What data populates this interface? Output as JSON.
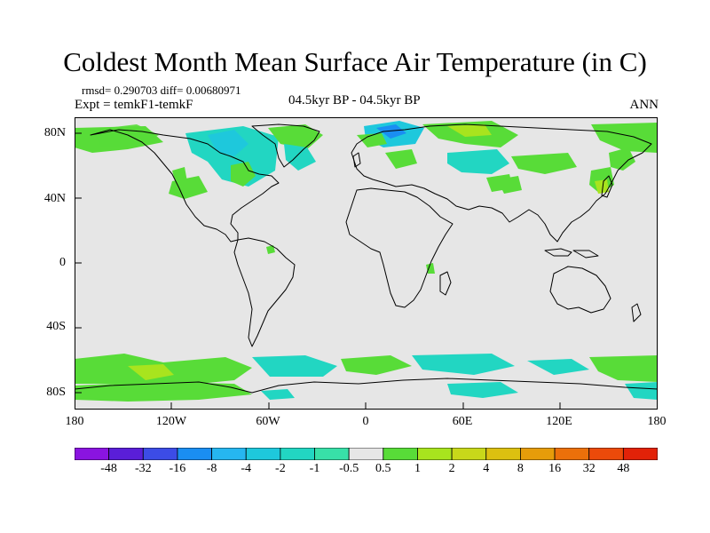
{
  "title": "Coldest Month Mean Surface Air Temperature (in C)",
  "stats_line": "rmsd= 0.290703 diff= 0.00680971",
  "experiment": "Expt = temkF1-temkF",
  "period": "04.5kyr BP - 04.5kyr BP",
  "season": "ANN",
  "lat_labels": [
    "80N",
    "40N",
    "0",
    "40S",
    "80S"
  ],
  "lon_labels": [
    "180",
    "120W",
    "60W",
    "0",
    "60E",
    "120E",
    "180"
  ],
  "colorbar": {
    "colors": [
      "#8a14e0",
      "#5a1ed8",
      "#3c4ce6",
      "#1a8ef2",
      "#26b6f0",
      "#1ec8dc",
      "#22d6c2",
      "#38e0a8",
      "#e6e6e6",
      "#58dc38",
      "#a8e41e",
      "#c8d81a",
      "#dcc010",
      "#e69c0a",
      "#ec700a",
      "#ec4a0a",
      "#e22208"
    ],
    "tick_labels": [
      "-48",
      "-32",
      "-16",
      "-8",
      "-4",
      "-2",
      "-1",
      "-0.5",
      "0.5",
      "1",
      "2",
      "4",
      "8",
      "16",
      "32",
      "48"
    ]
  },
  "colors": {
    "no_change": "#e6e6e6",
    "small_negative": "#22d6c2",
    "negative": "#1ec8dc",
    "strong_negative": "#1a8ef2",
    "small_positive": "#58dc38",
    "positive": "#a8e41e"
  }
}
